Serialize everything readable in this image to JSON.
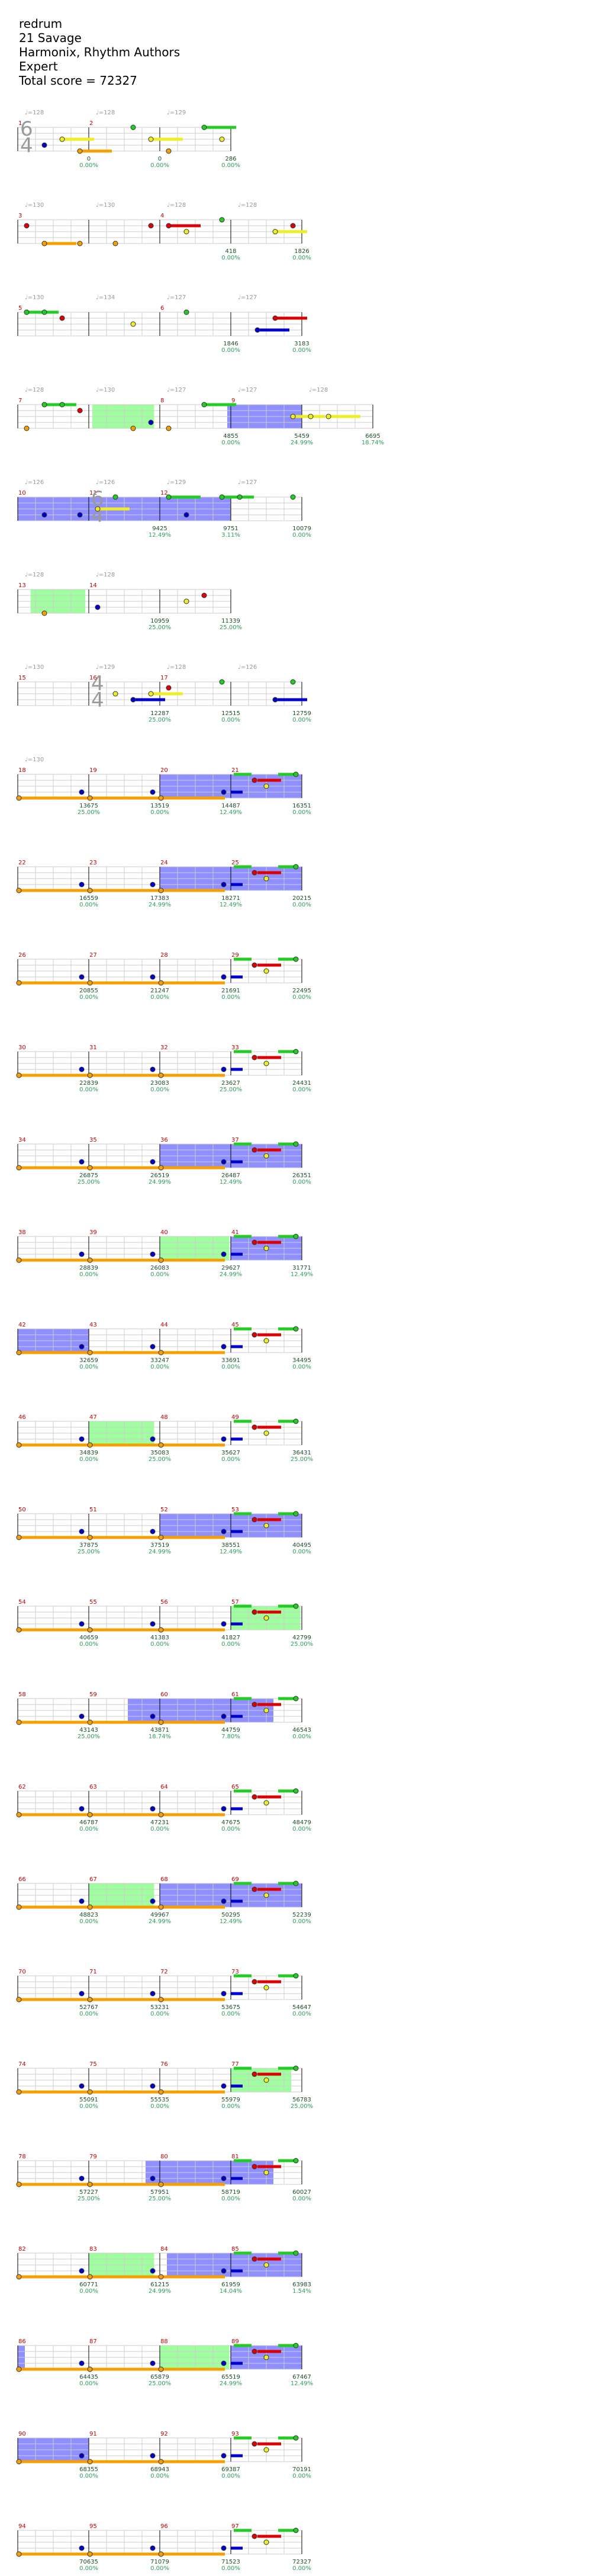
{
  "song": {
    "title": "redrum",
    "artist": "21 Savage",
    "charter": "Harmonix, Rhythm Authors",
    "difficulty": "Expert",
    "total_score": "Total score = 72327"
  },
  "colors": {
    "green": "#22cc22",
    "red": "#dd0000",
    "yellow": "#eeee22",
    "blue": "#0000cc",
    "orange": "#f5a000",
    "starpower_fill": "#9fff9f",
    "activation_fill": "#8f8fff",
    "grid_line": "#cccccc",
    "measure_line": "#000000",
    "measure_number": "#c00000",
    "score_text": "#2e9e5b"
  },
  "icons": {
    "note": "gem-circle",
    "hopo": "gem-diamond",
    "tap": "gem-star"
  },
  "rows": [
    {
      "measures": [
        {
          "num": "1",
          "ts": "6\n4",
          "tempo": "♩=128",
          "score": "0",
          "pct": "0.00%"
        },
        {
          "num": "2",
          "tempo": "♩=128",
          "score": "0",
          "pct": "0.00%"
        },
        {
          "num": "",
          "tempo": "♩=129",
          "score": "286",
          "pct": "0.00%"
        }
      ]
    },
    {
      "measures": [
        {
          "num": "3",
          "tempo": "♩=130",
          "score": "",
          "pct": ""
        },
        {
          "num": "",
          "tempo": "♩=130",
          "score": "",
          "pct": ""
        },
        {
          "num": "4",
          "tempo": "♩=128",
          "score": "418",
          "pct": "0.00%"
        },
        {
          "num": "",
          "tempo": "♩=128",
          "score": "1826",
          "pct": "0.00%"
        }
      ]
    },
    {
      "measures": [
        {
          "num": "5",
          "tempo": "♩=130",
          "score": "",
          "pct": ""
        },
        {
          "num": "",
          "tempo": "♩=134",
          "score": "",
          "pct": ""
        },
        {
          "num": "6",
          "tempo": "♩=127",
          "score": "1846",
          "pct": "0.00%"
        },
        {
          "num": "",
          "tempo": "♩=127",
          "score": "3183",
          "pct": "0.00%"
        }
      ]
    },
    {
      "measures": [
        {
          "num": "7",
          "tempo": "♩=128",
          "score": "",
          "pct": ""
        },
        {
          "num": "",
          "tempo": "♩=130",
          "score": "",
          "pct": ""
        },
        {
          "num": "8",
          "tempo": "♩=127",
          "score": "4855",
          "pct": "0.00%"
        },
        {
          "num": "9",
          "tempo": "♩=127",
          "score": "5459",
          "pct": "24.99%"
        },
        {
          "num": "",
          "tempo": "♩=128",
          "score": "6695",
          "pct": "18.74%"
        }
      ]
    },
    {
      "measures": [
        {
          "num": "10",
          "tempo": "♩=126",
          "score": "",
          "pct": ""
        },
        {
          "num": "11",
          "ts": "6\n4",
          "tempo": "♩=126",
          "score": "9425",
          "pct": "12.49%"
        },
        {
          "num": "12",
          "tempo": "♩=129",
          "score": "9751",
          "pct": "3.11%"
        },
        {
          "num": "",
          "tempo": "♩=127",
          "score": "10079",
          "pct": "0.00%"
        }
      ]
    },
    {
      "measures": [
        {
          "num": "13",
          "tempo": "♩=128",
          "score": "",
          "pct": ""
        },
        {
          "num": "14",
          "tempo": "♩=128",
          "score": "10959",
          "pct": "25.00%"
        },
        {
          "num": "",
          "tempo": "",
          "score": "11339",
          "pct": "25.00%"
        }
      ]
    },
    {
      "measures": [
        {
          "num": "15",
          "tempo": "♩=130",
          "score": "",
          "pct": ""
        },
        {
          "num": "16",
          "ts": "4\n4",
          "tempo": "♩=129",
          "score": "12287",
          "pct": "25.00%"
        },
        {
          "num": "17",
          "tempo": "♩=128",
          "score": "12515",
          "pct": "0.00%"
        },
        {
          "num": "",
          "tempo": "♩=126",
          "score": "12759",
          "pct": "0.00%"
        }
      ]
    },
    {
      "measures": [
        {
          "num": "18",
          "tempo": "♩=130",
          "score": "13675",
          "pct": "25.00%"
        },
        {
          "num": "19",
          "tempo": "",
          "score": "13519",
          "pct": "0.00%"
        },
        {
          "num": "20",
          "score": "14487",
          "pct": "12.49%"
        },
        {
          "num": "21",
          "score": "16351",
          "pct": "0.00%"
        }
      ]
    },
    {
      "measures": [
        {
          "num": "22",
          "score": "16559",
          "pct": "0.00%"
        },
        {
          "num": "23",
          "score": "17383",
          "pct": "24.99%"
        },
        {
          "num": "24",
          "score": "18271",
          "pct": "12.49%"
        },
        {
          "num": "25",
          "score": "20215",
          "pct": "0.00%"
        }
      ]
    },
    {
      "measures": [
        {
          "num": "26",
          "score": "20855",
          "pct": "0.00%"
        },
        {
          "num": "27",
          "score": "21247",
          "pct": "0.00%"
        },
        {
          "num": "28",
          "score": "21691",
          "pct": "0.00%"
        },
        {
          "num": "29",
          "score": "22495",
          "pct": "0.00%"
        }
      ]
    },
    {
      "measures": [
        {
          "num": "30",
          "score": "22839",
          "pct": "0.00%"
        },
        {
          "num": "31",
          "score": "23083",
          "pct": "0.00%"
        },
        {
          "num": "32",
          "score": "23627",
          "pct": "25.00%"
        },
        {
          "num": "33",
          "score": "24431",
          "pct": "0.00%"
        }
      ]
    },
    {
      "measures": [
        {
          "num": "34",
          "score": "26875",
          "pct": "25.00%"
        },
        {
          "num": "35",
          "score": "26519",
          "pct": "24.99%"
        },
        {
          "num": "36",
          "score": "26487",
          "pct": "12.49%"
        },
        {
          "num": "37",
          "score": "26351",
          "pct": "0.00%"
        }
      ]
    },
    {
      "measures": [
        {
          "num": "38",
          "score": "28839",
          "pct": "0.00%"
        },
        {
          "num": "39",
          "score": "26083",
          "pct": "0.00%"
        },
        {
          "num": "40",
          "score": "29627",
          "pct": "24.99%"
        },
        {
          "num": "41",
          "score": "31771",
          "pct": "12.49%"
        }
      ]
    },
    {
      "measures": [
        {
          "num": "42",
          "score": "32659",
          "pct": "0.00%"
        },
        {
          "num": "43",
          "score": "33247",
          "pct": "0.00%"
        },
        {
          "num": "44",
          "score": "33691",
          "pct": "0.00%"
        },
        {
          "num": "45",
          "score": "34495",
          "pct": "0.00%"
        }
      ]
    },
    {
      "measures": [
        {
          "num": "46",
          "score": "34839",
          "pct": "0.00%"
        },
        {
          "num": "47",
          "score": "35083",
          "pct": "25.00%"
        },
        {
          "num": "48",
          "score": "35627",
          "pct": "0.00%"
        },
        {
          "num": "49",
          "score": "36431",
          "pct": "25.00%"
        }
      ]
    },
    {
      "measures": [
        {
          "num": "50",
          "score": "37875",
          "pct": "25.00%"
        },
        {
          "num": "51",
          "score": "37519",
          "pct": "24.99%"
        },
        {
          "num": "52",
          "score": "38551",
          "pct": "12.49%"
        },
        {
          "num": "53",
          "score": "40495",
          "pct": "0.00%"
        }
      ]
    },
    {
      "measures": [
        {
          "num": "54",
          "score": "40659",
          "pct": "0.00%"
        },
        {
          "num": "55",
          "score": "41383",
          "pct": "0.00%"
        },
        {
          "num": "56",
          "score": "41827",
          "pct": "0.00%"
        },
        {
          "num": "57",
          "score": "42799",
          "pct": "25.00%"
        }
      ]
    },
    {
      "measures": [
        {
          "num": "58",
          "score": "43143",
          "pct": "25.00%"
        },
        {
          "num": "59",
          "score": "43871",
          "pct": "18.74%"
        },
        {
          "num": "60",
          "score": "44759",
          "pct": "7.80%"
        },
        {
          "num": "61",
          "score": "46543",
          "pct": "0.00%"
        }
      ]
    },
    {
      "measures": [
        {
          "num": "62",
          "score": "46787",
          "pct": "0.00%"
        },
        {
          "num": "63",
          "score": "47231",
          "pct": "0.00%"
        },
        {
          "num": "64",
          "score": "47675",
          "pct": "0.00%"
        },
        {
          "num": "65",
          "score": "48479",
          "pct": "0.00%"
        }
      ]
    },
    {
      "measures": [
        {
          "num": "66",
          "score": "48823",
          "pct": "0.00%"
        },
        {
          "num": "67",
          "score": "49967",
          "pct": "24.99%"
        },
        {
          "num": "68",
          "score": "50295",
          "pct": "12.49%"
        },
        {
          "num": "69",
          "score": "52239",
          "pct": "0.00%"
        }
      ]
    },
    {
      "measures": [
        {
          "num": "70",
          "score": "52767",
          "pct": "0.00%"
        },
        {
          "num": "71",
          "score": "53231",
          "pct": "0.00%"
        },
        {
          "num": "72",
          "score": "53675",
          "pct": "0.00%"
        },
        {
          "num": "73",
          "score": "54647",
          "pct": "0.00%"
        }
      ]
    },
    {
      "measures": [
        {
          "num": "74",
          "score": "55091",
          "pct": "0.00%"
        },
        {
          "num": "75",
          "score": "55535",
          "pct": "0.00%"
        },
        {
          "num": "76",
          "score": "55979",
          "pct": "0.00%"
        },
        {
          "num": "77",
          "score": "56783",
          "pct": "25.00%"
        }
      ]
    },
    {
      "measures": [
        {
          "num": "78",
          "score": "57227",
          "pct": "25.00%"
        },
        {
          "num": "79",
          "score": "57951",
          "pct": "25.00%"
        },
        {
          "num": "80",
          "score": "58719",
          "pct": "0.00%"
        },
        {
          "num": "81",
          "score": "60027",
          "pct": "0.00%"
        }
      ]
    },
    {
      "measures": [
        {
          "num": "82",
          "score": "60771",
          "pct": "0.00%"
        },
        {
          "num": "83",
          "score": "61215",
          "pct": "24.99%"
        },
        {
          "num": "84",
          "score": "61959",
          "pct": "14.04%"
        },
        {
          "num": "85",
          "score": "63983",
          "pct": "1.54%"
        }
      ]
    },
    {
      "measures": [
        {
          "num": "86",
          "score": "64435",
          "pct": "0.00%"
        },
        {
          "num": "87",
          "score": "65879",
          "pct": "25.00%"
        },
        {
          "num": "88",
          "score": "65519",
          "pct": "24.99%"
        },
        {
          "num": "89",
          "score": "67467",
          "pct": "12.49%"
        }
      ]
    },
    {
      "measures": [
        {
          "num": "90",
          "score": "68355",
          "pct": "0.00%"
        },
        {
          "num": "91",
          "score": "68943",
          "pct": "0.00%"
        },
        {
          "num": "92",
          "score": "69387",
          "pct": "0.00%"
        },
        {
          "num": "93",
          "score": "70191",
          "pct": "0.00%"
        }
      ]
    },
    {
      "measures": [
        {
          "num": "94",
          "score": "70635",
          "pct": "0.00%"
        },
        {
          "num": "95",
          "score": "71079",
          "pct": "0.00%"
        },
        {
          "num": "96",
          "score": "71523",
          "pct": "0.00%"
        },
        {
          "num": "97",
          "score": "72327",
          "pct": "0.00%"
        }
      ]
    }
  ]
}
